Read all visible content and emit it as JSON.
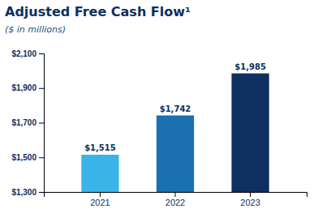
{
  "chart_data": {
    "type": "bar",
    "title": "Adjusted Free Cash Flow¹",
    "subtitle": "($ in millions)",
    "categories": [
      "2021",
      "2022",
      "2023"
    ],
    "values": [
      1515,
      1742,
      1985
    ],
    "value_labels": [
      "$1,515",
      "$1,742",
      "$1,985"
    ],
    "data_labels": true,
    "colors": [
      "#3ab4e8",
      "#1a70b0",
      "#0d3060"
    ],
    "ylim": [
      1300,
      2100
    ],
    "yticks": [
      {
        "value": 1300,
        "label": "$1,300"
      },
      {
        "value": 1500,
        "label": "$1,500"
      },
      {
        "value": 1700,
        "label": "$1,700"
      },
      {
        "value": 1900,
        "label": "$1,900"
      },
      {
        "value": 2100,
        "label": "$2,100"
      }
    ],
    "grid": false
  }
}
